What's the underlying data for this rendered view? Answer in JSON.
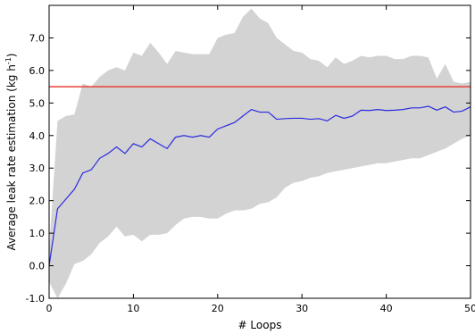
{
  "chart_data": {
    "type": "line",
    "title": "",
    "xlabel": "# Loops",
    "ylabel": "Average leak rate estimation (kg h",
    "ylabel_superscript": "-1",
    "ylabel_suffix": ")",
    "xlim": [
      0,
      50
    ],
    "ylim": [
      -1.0,
      8.0
    ],
    "xticks": [
      0,
      10,
      20,
      30,
      40,
      50
    ],
    "xtick_labels": [
      "0",
      "10",
      "20",
      "30",
      "40",
      "50"
    ],
    "yticks": [
      -1.0,
      0.0,
      1.0,
      2.0,
      3.0,
      4.0,
      5.0,
      6.0,
      7.0
    ],
    "ytick_labels": [
      "-1.0",
      "0.0",
      "1.0",
      "2.0",
      "3.0",
      "4.0",
      "5.0",
      "6.0",
      "7.0"
    ],
    "grid": false,
    "reference_line": {
      "y": 5.5,
      "color": "#e8403a"
    },
    "series": [
      {
        "kind": "mean_line",
        "color": "#2a2ae0",
        "x": [
          0,
          1,
          2,
          3,
          4,
          5,
          6,
          7,
          8,
          9,
          10,
          11,
          12,
          13,
          14,
          15,
          16,
          17,
          18,
          19,
          20,
          21,
          22,
          23,
          24,
          25,
          26,
          27,
          28,
          29,
          30,
          31,
          32,
          33,
          34,
          35,
          36,
          37,
          38,
          39,
          40,
          41,
          42,
          43,
          44,
          45,
          46,
          47,
          48,
          49,
          50
        ],
        "values": [
          0.0,
          1.75,
          2.05,
          2.35,
          2.85,
          2.95,
          3.3,
          3.45,
          3.65,
          3.45,
          3.75,
          3.65,
          3.9,
          3.75,
          3.6,
          3.95,
          4.0,
          3.95,
          4.0,
          3.95,
          4.2,
          4.3,
          4.4,
          4.6,
          4.8,
          4.72,
          4.72,
          4.5,
          4.52,
          4.53,
          4.53,
          4.5,
          4.52,
          4.45,
          4.62,
          4.53,
          4.6,
          4.78,
          4.77,
          4.8,
          4.77,
          4.78,
          4.8,
          4.85,
          4.85,
          4.9,
          4.78,
          4.88,
          4.72,
          4.75,
          4.88
        ]
      },
      {
        "kind": "band_upper",
        "color": "#d3d3d3",
        "x": [
          0,
          1,
          2,
          3,
          4,
          5,
          6,
          7,
          8,
          9,
          10,
          11,
          12,
          13,
          14,
          15,
          16,
          17,
          18,
          19,
          20,
          21,
          22,
          23,
          24,
          25,
          26,
          27,
          28,
          29,
          30,
          31,
          32,
          33,
          34,
          35,
          36,
          37,
          38,
          39,
          40,
          41,
          42,
          43,
          44,
          45,
          46,
          47,
          48,
          49,
          50
        ],
        "values": [
          0.5,
          4.45,
          4.6,
          4.65,
          5.6,
          5.5,
          5.8,
          6.0,
          6.1,
          6.0,
          6.55,
          6.45,
          6.85,
          6.55,
          6.2,
          6.6,
          6.55,
          6.5,
          6.5,
          6.5,
          7.0,
          7.1,
          7.15,
          7.65,
          7.9,
          7.6,
          7.45,
          7.0,
          6.8,
          6.6,
          6.55,
          6.35,
          6.3,
          6.1,
          6.4,
          6.2,
          6.3,
          6.45,
          6.4,
          6.45,
          6.45,
          6.35,
          6.35,
          6.45,
          6.45,
          6.4,
          5.75,
          6.2,
          5.65,
          5.6,
          5.65
        ]
      },
      {
        "kind": "band_lower",
        "color": "#d3d3d3",
        "x": [
          0,
          1,
          2,
          3,
          4,
          5,
          6,
          7,
          8,
          9,
          10,
          11,
          12,
          13,
          14,
          15,
          16,
          17,
          18,
          19,
          20,
          21,
          22,
          23,
          24,
          25,
          26,
          27,
          28,
          29,
          30,
          31,
          32,
          33,
          34,
          35,
          36,
          37,
          38,
          39,
          40,
          41,
          42,
          43,
          44,
          45,
          46,
          47,
          48,
          49,
          50
        ],
        "values": [
          -0.5,
          -1.0,
          -0.55,
          0.05,
          0.15,
          0.35,
          0.7,
          0.9,
          1.2,
          0.9,
          0.95,
          0.75,
          0.95,
          0.95,
          1.0,
          1.25,
          1.45,
          1.5,
          1.5,
          1.45,
          1.45,
          1.6,
          1.7,
          1.7,
          1.75,
          1.9,
          1.95,
          2.1,
          2.4,
          2.55,
          2.6,
          2.7,
          2.75,
          2.85,
          2.9,
          2.95,
          3.0,
          3.05,
          3.1,
          3.15,
          3.15,
          3.2,
          3.25,
          3.3,
          3.3,
          3.4,
          3.5,
          3.6,
          3.75,
          3.9,
          4.0
        ]
      }
    ]
  }
}
